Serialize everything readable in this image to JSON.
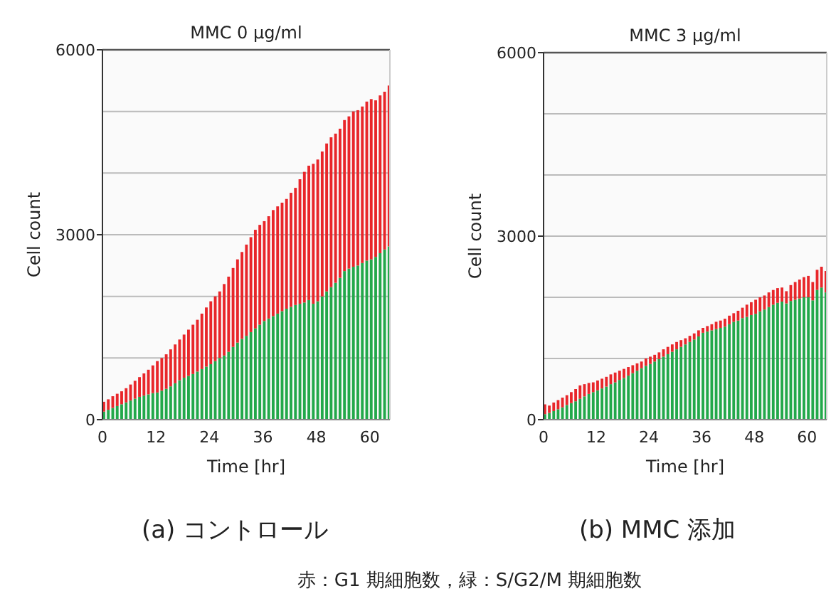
{
  "chart_data": [
    {
      "type": "bar",
      "stacked": true,
      "title": "MMC  0 μg/ml",
      "xlabel": "Time [hr]",
      "ylabel": "Cell count",
      "annotations": [
        "(a) コントロール"
      ],
      "xlim": [
        0,
        64.5
      ],
      "xticks": [
        0,
        12,
        24,
        36,
        48,
        60
      ],
      "ylim": [
        0,
        6000
      ],
      "yticks": [
        0,
        {
          "value": 1000,
          "label": null
        },
        {
          "value": 2000,
          "label": null
        },
        3000,
        {
          "value": 4000,
          "label": null
        },
        {
          "value": 5000,
          "label": null
        },
        6000
      ],
      "grid": "y",
      "x": [
        0,
        1,
        2,
        3,
        4,
        5,
        6,
        7,
        8,
        9,
        10,
        11,
        12,
        13,
        14,
        15,
        16,
        17,
        18,
        19,
        20,
        21,
        22,
        23,
        24,
        25,
        26,
        27,
        28,
        29,
        30,
        31,
        32,
        33,
        34,
        35,
        36,
        37,
        38,
        39,
        40,
        41,
        42,
        43,
        44,
        45,
        46,
        47,
        48,
        49,
        50,
        51,
        52,
        53,
        54,
        55,
        56,
        57,
        58,
        59,
        60,
        61,
        62,
        63,
        64
      ],
      "series": [
        {
          "color": "#22a84a",
          "values": [
            130,
            160,
            190,
            220,
            250,
            280,
            310,
            340,
            370,
            390,
            410,
            430,
            440,
            470,
            500,
            540,
            590,
            640,
            680,
            710,
            740,
            780,
            820,
            860,
            900,
            950,
            1000,
            1040,
            1100,
            1180,
            1250,
            1310,
            1360,
            1420,
            1480,
            1540,
            1600,
            1640,
            1680,
            1720,
            1760,
            1800,
            1830,
            1860,
            1880,
            1900,
            1940,
            1880,
            1920,
            2000,
            2080,
            2150,
            2220,
            2300,
            2410,
            2450,
            2480,
            2500,
            2540,
            2580,
            2600,
            2640,
            2700,
            2760,
            2810
          ]
        },
        {
          "color": "#e8262a",
          "values": [
            160,
            170,
            190,
            200,
            210,
            230,
            260,
            290,
            320,
            360,
            400,
            450,
            510,
            530,
            560,
            600,
            630,
            660,
            700,
            750,
            800,
            840,
            900,
            960,
            1020,
            1050,
            1080,
            1160,
            1220,
            1280,
            1350,
            1410,
            1480,
            1540,
            1600,
            1620,
            1620,
            1660,
            1720,
            1740,
            1760,
            1780,
            1850,
            1900,
            2020,
            2120,
            2180,
            2270,
            2300,
            2350,
            2400,
            2430,
            2420,
            2420,
            2450,
            2470,
            2520,
            2520,
            2540,
            2580,
            2600,
            2540,
            2560,
            2560,
            2610
          ]
        }
      ]
    },
    {
      "type": "bar",
      "stacked": true,
      "title": "MMC  3 μg/ml",
      "xlabel": "Time [hr]",
      "ylabel": "Cell count",
      "annotations": [
        "(b) MMC 添加",
        "赤：G1 期細胞数，緑：S/G2/M 期細胞数"
      ],
      "xlim": [
        0,
        64.5
      ],
      "xticks": [
        0,
        12,
        24,
        36,
        48,
        60
      ],
      "ylim": [
        0,
        6000
      ],
      "yticks": [
        0,
        {
          "value": 1000,
          "label": null
        },
        {
          "value": 2000,
          "label": null
        },
        3000,
        {
          "value": 4000,
          "label": null
        },
        {
          "value": 5000,
          "label": null
        },
        6000
      ],
      "grid": "y",
      "x": [
        0,
        1,
        2,
        3,
        4,
        5,
        6,
        7,
        8,
        9,
        10,
        11,
        12,
        13,
        14,
        15,
        16,
        17,
        18,
        19,
        20,
        21,
        22,
        23,
        24,
        25,
        26,
        27,
        28,
        29,
        30,
        31,
        32,
        33,
        34,
        35,
        36,
        37,
        38,
        39,
        40,
        41,
        42,
        43,
        44,
        45,
        46,
        47,
        48,
        49,
        50,
        51,
        52,
        53,
        54,
        55,
        56,
        57,
        58,
        59,
        60,
        61,
        62,
        63,
        64
      ],
      "series": [
        {
          "color": "#22a84a",
          "values": [
            90,
            110,
            140,
            170,
            200,
            240,
            270,
            300,
            340,
            380,
            420,
            450,
            480,
            510,
            540,
            580,
            610,
            650,
            680,
            720,
            760,
            800,
            840,
            880,
            910,
            950,
            990,
            1030,
            1070,
            1110,
            1150,
            1190,
            1230,
            1270,
            1310,
            1360,
            1420,
            1440,
            1460,
            1480,
            1500,
            1520,
            1560,
            1600,
            1620,
            1660,
            1680,
            1710,
            1730,
            1770,
            1800,
            1840,
            1880,
            1910,
            1930,
            1900,
            1940,
            1960,
            1980,
            2000,
            2000,
            1950,
            2120,
            2160,
            2080
          ]
        },
        {
          "color": "#e8262a",
          "values": [
            160,
            120,
            140,
            150,
            160,
            160,
            180,
            200,
            220,
            200,
            180,
            160,
            160,
            160,
            160,
            160,
            160,
            150,
            150,
            140,
            130,
            120,
            110,
            120,
            120,
            110,
            110,
            120,
            120,
            120,
            120,
            110,
            100,
            100,
            100,
            100,
            80,
            90,
            100,
            120,
            120,
            130,
            140,
            140,
            160,
            170,
            200,
            210,
            230,
            230,
            230,
            240,
            240,
            240,
            230,
            200,
            260,
            290,
            310,
            330,
            350,
            300,
            330,
            340,
            350
          ]
        }
      ]
    }
  ]
}
